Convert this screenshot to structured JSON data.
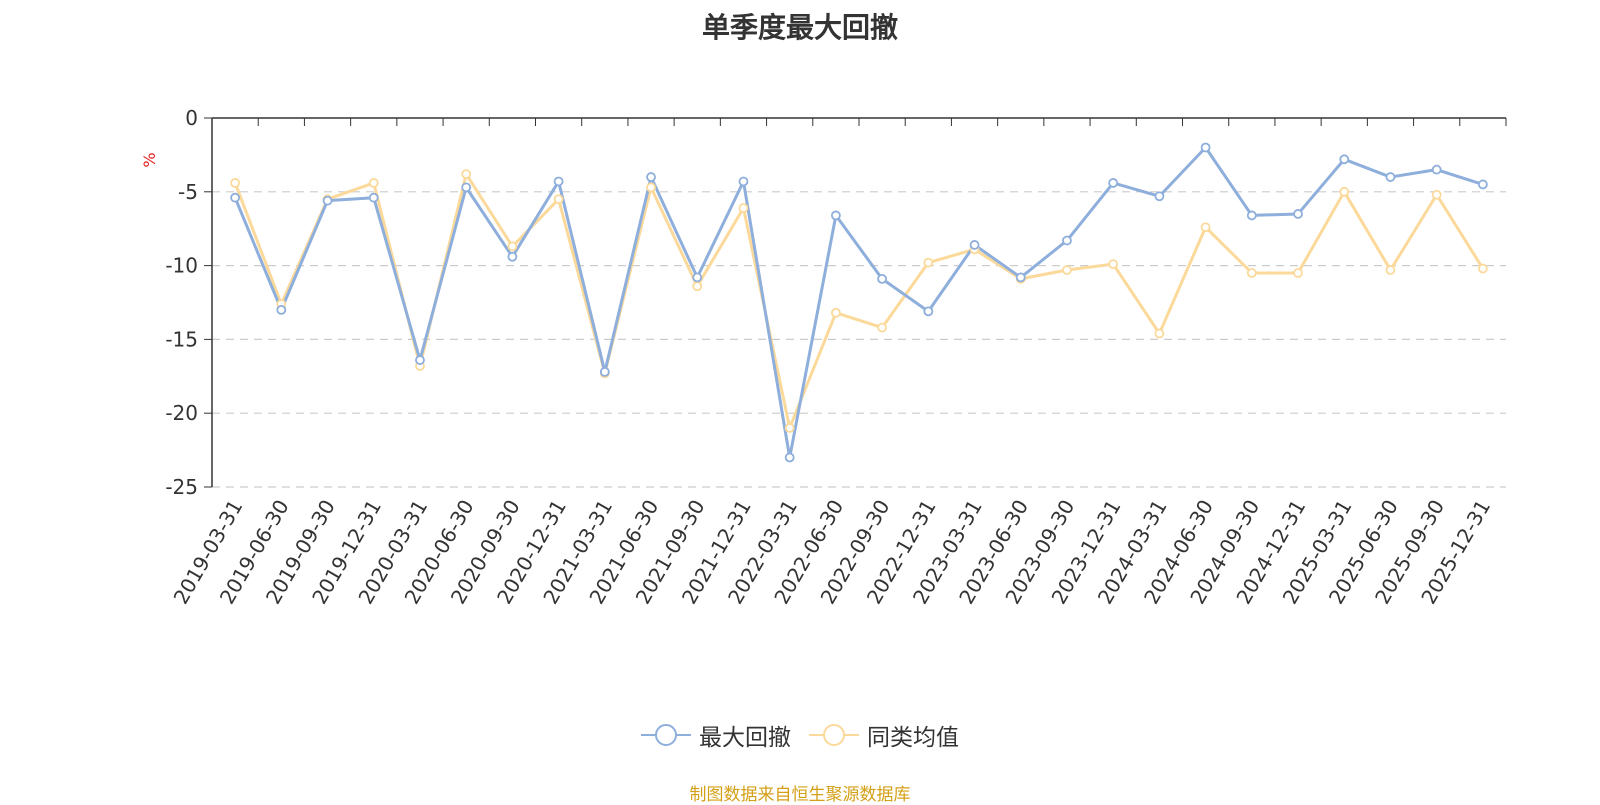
{
  "chart_data": {
    "type": "line",
    "title": "单季度最大回撤",
    "ylabel": "%",
    "ylim": [
      -25,
      0
    ],
    "yticks": [
      0,
      -5,
      -10,
      -15,
      -20,
      -25
    ],
    "grid": true,
    "legend_position": "bottom-center",
    "categories": [
      "2019-03-31",
      "2019-06-30",
      "2019-09-30",
      "2019-12-31",
      "2020-03-31",
      "2020-06-30",
      "2020-09-30",
      "2020-12-31",
      "2021-03-31",
      "2021-06-30",
      "2021-09-30",
      "2021-12-31",
      "2022-03-31",
      "2022-06-30",
      "2022-09-30",
      "2022-12-31",
      "2023-03-31",
      "2023-06-30",
      "2023-09-30",
      "2023-12-31",
      "2024-03-31",
      "2024-06-30",
      "2024-09-30",
      "2024-12-31",
      "2025-03-31",
      "2025-06-30",
      "2025-09-30",
      "2025-12-31"
    ],
    "series": [
      {
        "name": "最大回撤",
        "color": "#8eaedb",
        "values": [
          -5.4,
          -13.0,
          -5.6,
          -5.4,
          -16.4,
          -4.7,
          -9.4,
          -4.3,
          -17.2,
          -4.0,
          -10.8,
          -4.3,
          -23.0,
          -6.6,
          -10.9,
          -13.1,
          -8.6,
          -10.8,
          -8.3,
          -4.4,
          -5.3,
          -2.0,
          -6.6,
          -6.5,
          -2.8,
          -4.0,
          -3.5,
          -4.5
        ]
      },
      {
        "name": "同类均值",
        "color": "#fbd99a",
        "values": [
          -4.4,
          -12.6,
          -5.5,
          -4.4,
          -16.8,
          -3.8,
          -8.7,
          -5.5,
          -17.3,
          -4.7,
          -11.4,
          -6.1,
          -21.0,
          -13.2,
          -14.2,
          -9.8,
          -8.9,
          -10.9,
          -10.3,
          -9.9,
          -14.6,
          -7.4,
          -10.5,
          -10.5,
          -5.0,
          -10.3,
          -5.2,
          -10.2
        ]
      }
    ]
  },
  "source_text": "制图数据来自恒生聚源数据库",
  "source_color": "#d4a017",
  "axis_color": "#333333",
  "grid_color": "#cccccc",
  "ylabel_color": "#e02020"
}
